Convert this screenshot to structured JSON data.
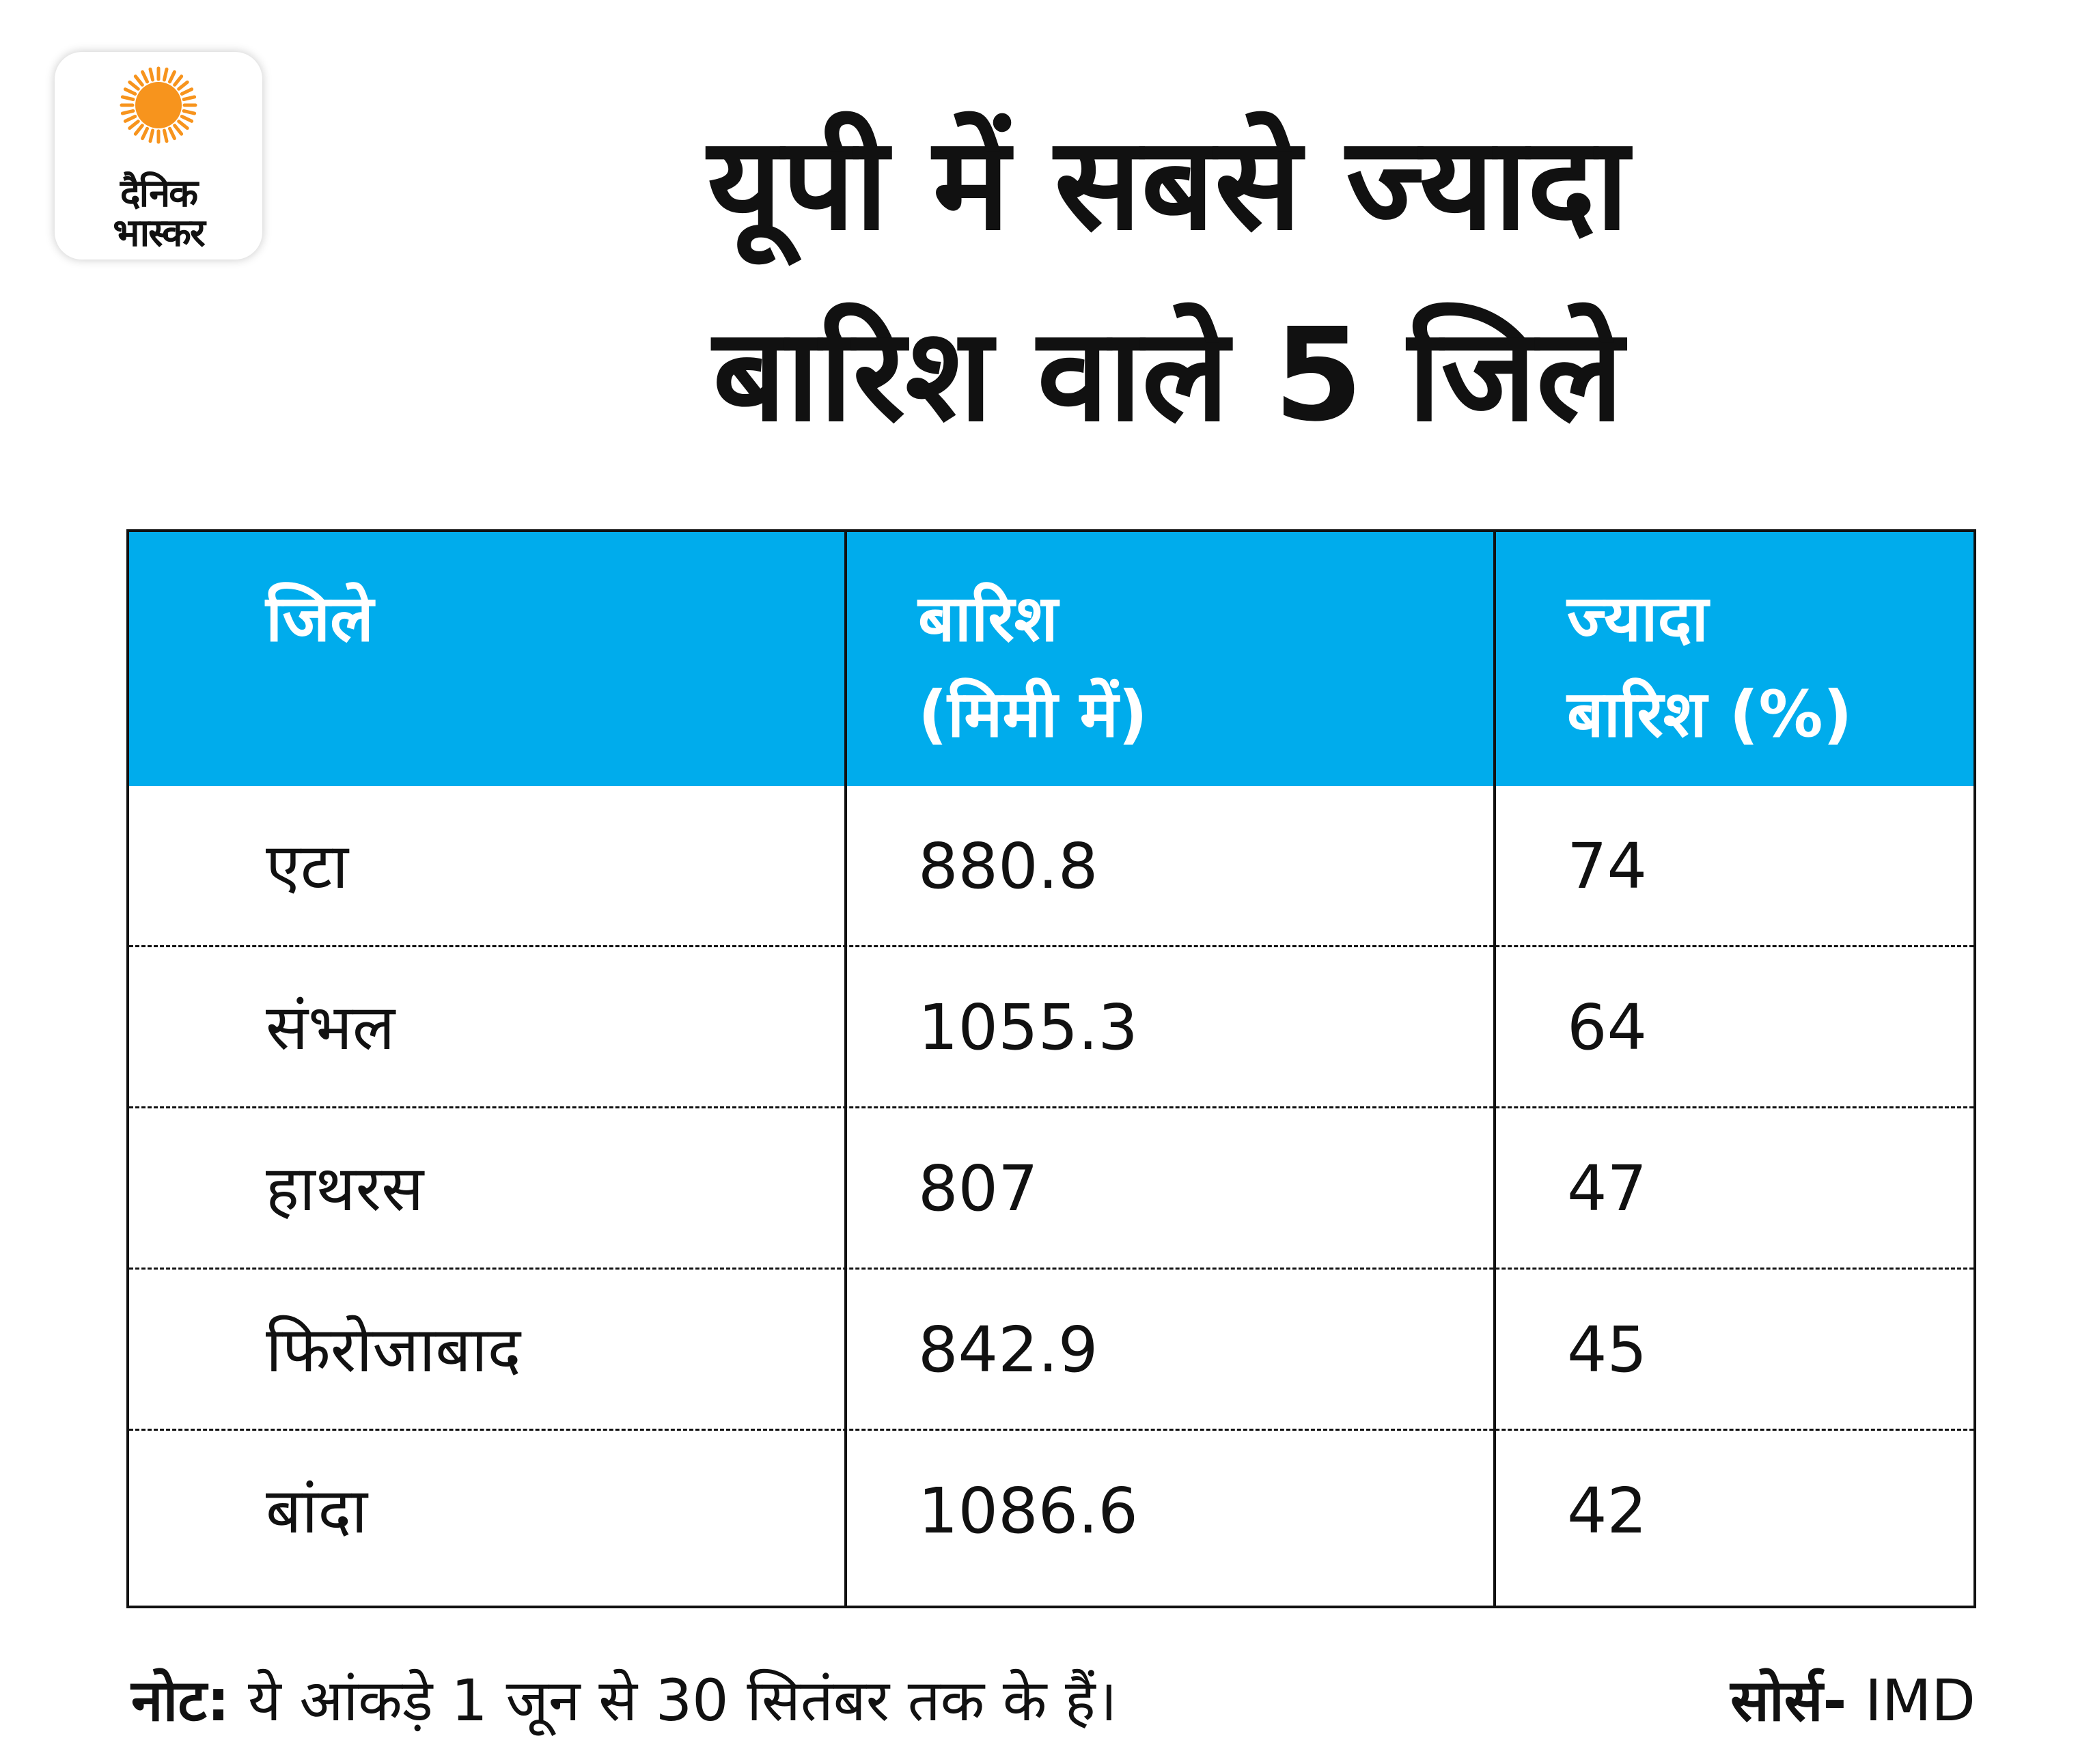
{
  "brand": {
    "line1": "दैनिक",
    "line2": "भास्कर",
    "sun_color": "#f7941d"
  },
  "title": {
    "line1": "यूपी में सबसे ज्यादा",
    "line2": "बारिश वाले 5 जिले"
  },
  "colors": {
    "header_bg": "#00acec",
    "header_text": "#ffffff"
  },
  "chart_data": {
    "type": "table",
    "columns": [
      {
        "line1": "जिले",
        "line2": ""
      },
      {
        "line1": "बारिश",
        "line2": "(मिमी में)"
      },
      {
        "line1": "ज्यादा",
        "line2": "बारिश (%)"
      }
    ],
    "rows": [
      {
        "district": "एटा",
        "rainfall": "880.8",
        "excess": "74"
      },
      {
        "district": "संभल",
        "rainfall": "1055.3",
        "excess": "64"
      },
      {
        "district": "हाथरस",
        "rainfall": "807",
        "excess": "47"
      },
      {
        "district": "फिरोजाबाद",
        "rainfall": "842.9",
        "excess": "45"
      },
      {
        "district": "बांदा",
        "rainfall": "1086.6",
        "excess": "42"
      }
    ]
  },
  "footer": {
    "note_label": "नोट:",
    "note_text": " ये आंकड़े 1 जून से 30 सितंबर तक के हैं।",
    "source_label": "सोर्स-",
    "source_text": " IMD"
  }
}
